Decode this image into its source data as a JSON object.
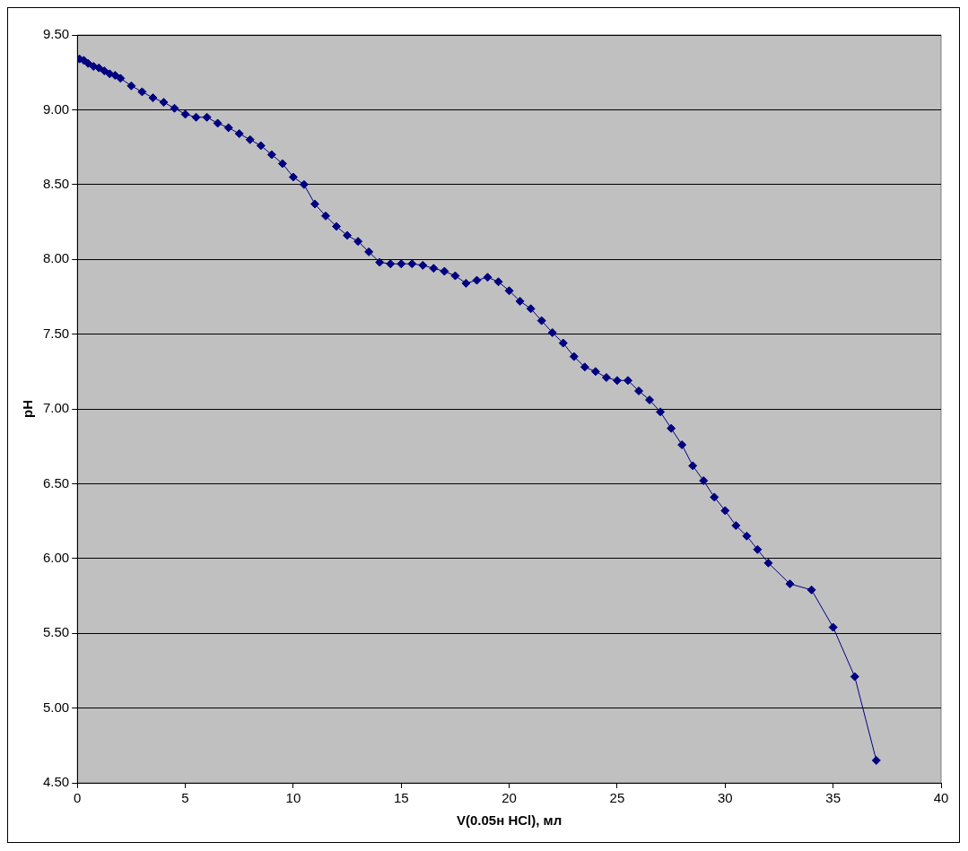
{
  "chart_data": {
    "type": "line",
    "xlabel": "V(0.05н HCl), мл",
    "ylabel": "pH",
    "x": [
      0.1,
      0.3,
      0.5,
      0.75,
      1,
      1.25,
      1.5,
      1.75,
      2,
      2.5,
      3,
      3.5,
      4,
      4.5,
      5,
      5.5,
      6,
      6.5,
      7,
      7.5,
      8,
      8.5,
      9,
      9.5,
      10,
      10.5,
      11,
      11.5,
      12,
      12.5,
      13,
      13.5,
      14,
      14.5,
      15,
      15.5,
      16,
      16.5,
      17,
      17.5,
      18,
      18.5,
      19,
      19.5,
      20,
      20.5,
      21,
      21.5,
      22,
      22.5,
      23,
      23.5,
      24,
      24.5,
      25,
      25.5,
      26,
      26.5,
      27,
      27.5,
      28,
      28.5,
      29,
      29.5,
      30,
      30.5,
      31,
      31.5,
      32,
      33,
      34,
      35,
      36,
      37
    ],
    "series": [
      {
        "color": "#000080",
        "values": [
          9.34,
          9.33,
          9.31,
          9.29,
          9.28,
          9.26,
          9.24,
          9.23,
          9.21,
          9.16,
          9.12,
          9.08,
          9.05,
          9.01,
          8.97,
          8.95,
          8.95,
          8.91,
          8.88,
          8.84,
          8.8,
          8.76,
          8.7,
          8.64,
          8.55,
          8.5,
          8.37,
          8.29,
          8.22,
          8.16,
          8.12,
          8.05,
          7.98,
          7.97,
          7.97,
          7.97,
          7.96,
          7.94,
          7.92,
          7.89,
          7.84,
          7.86,
          7.88,
          7.85,
          7.79,
          7.72,
          7.67,
          7.59,
          7.51,
          7.44,
          7.35,
          7.28,
          7.25,
          7.21,
          7.19,
          7.19,
          7.12,
          7.06,
          6.98,
          6.87,
          6.76,
          6.62,
          6.52,
          6.41,
          6.32,
          6.22,
          6.15,
          6.06,
          5.97,
          5.83,
          5.79,
          5.54,
          5.21,
          4.65
        ]
      }
    ],
    "xlim": [
      0,
      40
    ],
    "xticks": [
      0,
      5,
      10,
      15,
      20,
      25,
      30,
      35,
      40
    ],
    "ylim": [
      4.5,
      9.5
    ],
    "yticks": [
      {
        "value": 4.5,
        "label": "4.50"
      },
      {
        "value": 5,
        "label": "5.00"
      },
      {
        "value": 5.5,
        "label": "5.50"
      },
      {
        "value": 6,
        "label": "6.00"
      },
      {
        "value": 6.5,
        "label": "6.50"
      },
      {
        "value": 7,
        "label": "7.00"
      },
      {
        "value": 7.5,
        "label": "7.50"
      },
      {
        "value": 8,
        "label": "8.00"
      },
      {
        "value": 8.5,
        "label": "8.50"
      },
      {
        "value": 9,
        "label": "9.00"
      },
      {
        "value": 9.5,
        "label": "9.50"
      }
    ],
    "grid": "y",
    "legend": false,
    "marker": "diamond",
    "line_style": "solid"
  }
}
